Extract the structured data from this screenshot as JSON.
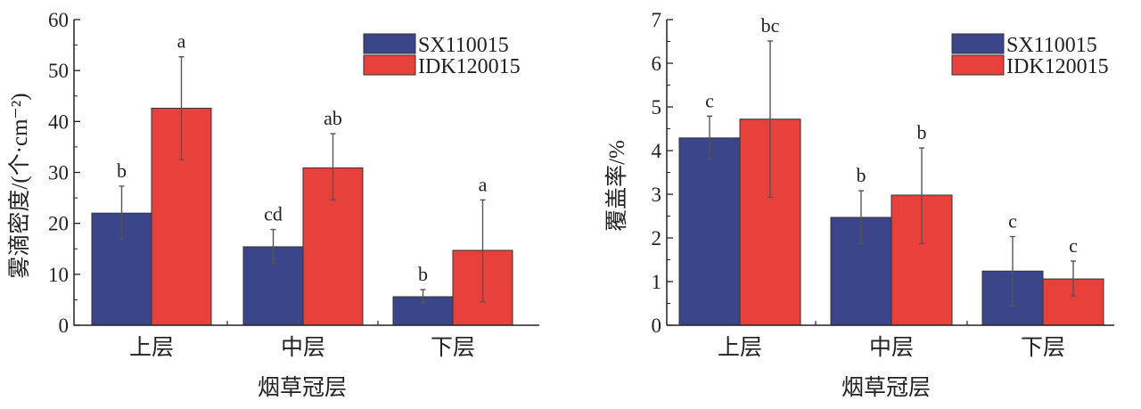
{
  "colors": {
    "SX110015": "#3b4589",
    "IDK120015": "#e8413c",
    "axis": "#222222",
    "error_bar": "#555555"
  },
  "chart_data": [
    {
      "type": "bar",
      "xlabel": "烟草冠层",
      "ylabel": "雾滴密度/(个·cm⁻²)",
      "categories": [
        "上层",
        "中层",
        "下层"
      ],
      "ylim": [
        0,
        60
      ],
      "yticks": [
        0,
        10,
        20,
        30,
        40,
        50,
        60
      ],
      "grid": false,
      "legend": "top-right",
      "series": [
        {
          "name": "SX110015",
          "values": [
            22.0,
            15.4,
            5.6
          ],
          "err_low": [
            17.0,
            12.1,
            4.4
          ],
          "err_high": [
            27.3,
            18.8,
            7.0
          ],
          "letters": [
            "b",
            "cd",
            "b"
          ]
        },
        {
          "name": "IDK120015",
          "values": [
            42.6,
            30.9,
            14.7
          ],
          "err_low": [
            32.5,
            24.6,
            4.6
          ],
          "err_high": [
            52.7,
            37.6,
            24.6
          ],
          "letters": [
            "a",
            "ab",
            "a"
          ]
        }
      ]
    },
    {
      "type": "bar",
      "xlabel": "烟草冠层",
      "ylabel": "覆盖率/%",
      "categories": [
        "上层",
        "中层",
        "下层"
      ],
      "ylim": [
        0,
        7
      ],
      "yticks": [
        0,
        1,
        2,
        3,
        4,
        5,
        6,
        7
      ],
      "grid": false,
      "legend": "top-right",
      "series": [
        {
          "name": "SX110015",
          "values": [
            4.29,
            2.47,
            1.24
          ],
          "err_low": [
            3.8,
            1.87,
            0.44
          ],
          "err_high": [
            4.79,
            3.08,
            2.03
          ],
          "letters": [
            "c",
            "b",
            "c"
          ]
        },
        {
          "name": "IDK120015",
          "values": [
            4.72,
            2.98,
            1.06
          ],
          "err_low": [
            2.93,
            1.87,
            0.67
          ],
          "err_high": [
            6.51,
            4.06,
            1.47
          ],
          "letters": [
            "bc",
            "b",
            "c"
          ]
        }
      ]
    }
  ]
}
